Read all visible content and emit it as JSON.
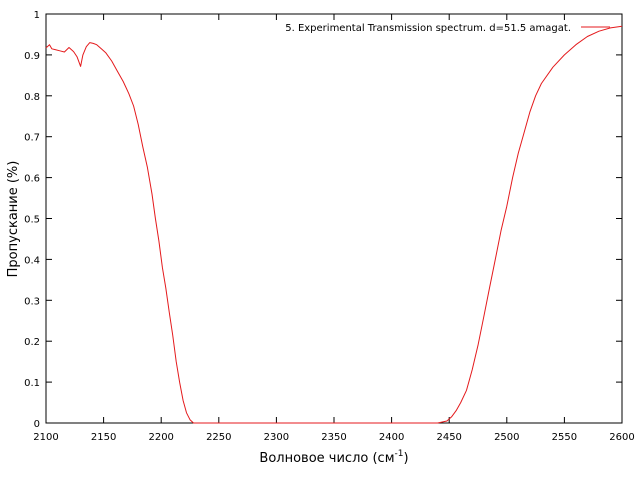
{
  "chart_data": {
    "type": "line",
    "title": "",
    "xlabel": "Волновое число (см",
    "xlabel_sup": "-1",
    "xlabel_close": ")",
    "ylabel": "Пропускание (%)",
    "xlim": [
      2100,
      2600
    ],
    "ylim": [
      0,
      1
    ],
    "xticks": [
      "2100",
      "2150",
      "2200",
      "2250",
      "2300",
      "2350",
      "2400",
      "2450",
      "2500",
      "2550",
      "2600"
    ],
    "yticks": [
      "0",
      "0.1",
      "0.2",
      "0.3",
      "0.4",
      "0.5",
      "0.6",
      "0.7",
      "0.8",
      "0.9",
      "1"
    ],
    "grid": false,
    "legend_position": "top-right",
    "series": [
      {
        "name": "5. Experimental Transmission spectrum. d=51.5 amagat.",
        "color": "#e41a1c",
        "x": [
          2100,
          2103,
          2105,
          2108,
          2112,
          2116,
          2120,
          2124,
          2127,
          2130,
          2132,
          2135,
          2138,
          2141,
          2144,
          2148,
          2152,
          2157,
          2162,
          2167,
          2172,
          2176,
          2180,
          2184,
          2188,
          2192,
          2195,
          2198,
          2201,
          2204,
          2207,
          2210,
          2213,
          2216,
          2219,
          2222,
          2225,
          2228,
          2231,
          2240,
          2260,
          2300,
          2350,
          2400,
          2440,
          2448,
          2452,
          2456,
          2460,
          2465,
          2470,
          2475,
          2480,
          2485,
          2490,
          2495,
          2500,
          2505,
          2510,
          2515,
          2520,
          2525,
          2530,
          2540,
          2550,
          2560,
          2570,
          2580,
          2590,
          2600
        ],
        "y": [
          0.917,
          0.925,
          0.915,
          0.913,
          0.91,
          0.907,
          0.918,
          0.908,
          0.895,
          0.872,
          0.9,
          0.92,
          0.93,
          0.928,
          0.925,
          0.915,
          0.905,
          0.885,
          0.86,
          0.835,
          0.805,
          0.775,
          0.73,
          0.675,
          0.625,
          0.56,
          0.5,
          0.445,
          0.38,
          0.33,
          0.27,
          0.215,
          0.15,
          0.1,
          0.055,
          0.025,
          0.008,
          0.0,
          0.0,
          0.0,
          0.0,
          0.0,
          0.0,
          0.0,
          0.0,
          0.005,
          0.015,
          0.03,
          0.05,
          0.08,
          0.13,
          0.19,
          0.26,
          0.33,
          0.4,
          0.47,
          0.53,
          0.6,
          0.66,
          0.71,
          0.76,
          0.8,
          0.83,
          0.87,
          0.9,
          0.925,
          0.945,
          0.958,
          0.966,
          0.97
        ]
      }
    ]
  }
}
